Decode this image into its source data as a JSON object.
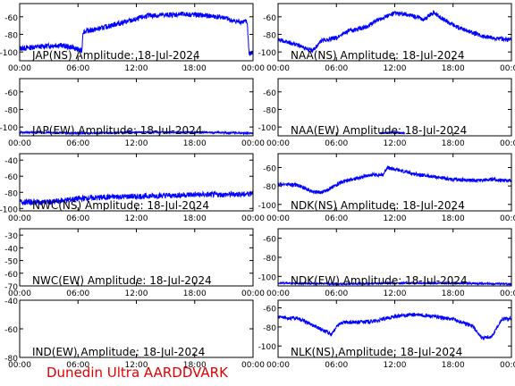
{
  "footer": {
    "text": "Dunedin Ultra AARDDVARK",
    "color": "#e00000"
  },
  "colors": {
    "trace": "#0000ff",
    "axis": "#000000",
    "background": "#ffffff"
  },
  "x_tick_labels": [
    "00:00",
    "06:00",
    "12:00",
    "18:00",
    "00:00"
  ],
  "chart_data": [
    {
      "type": "line",
      "title": "JAP(NS) Amplitude: 18-Jul-2024",
      "xlim": [
        0,
        24
      ],
      "ylim": [
        -110,
        -45
      ],
      "yticks": [
        -100,
        -80,
        -60
      ],
      "ytick_labels": [
        "-100",
        "-80",
        "-60"
      ],
      "points": [
        [
          0,
          -96
        ],
        [
          2,
          -94
        ],
        [
          4,
          -92
        ],
        [
          5.5,
          -95
        ],
        [
          6.4,
          -99
        ],
        [
          6.5,
          -77
        ],
        [
          8,
          -74
        ],
        [
          10,
          -68
        ],
        [
          12,
          -63
        ],
        [
          13,
          -59
        ],
        [
          15,
          -58
        ],
        [
          17,
          -57
        ],
        [
          19.5,
          -59
        ],
        [
          21,
          -61
        ],
        [
          22,
          -65
        ],
        [
          23.4,
          -66
        ],
        [
          23.6,
          -103
        ],
        [
          24,
          -100
        ]
      ],
      "band": 6
    },
    {
      "type": "line",
      "title": "NAA(NS) Amplitude: 18-Jul-2024",
      "xlim": [
        0,
        24
      ],
      "ylim": [
        -110,
        -45
      ],
      "yticks": [
        -100,
        -80,
        -60
      ],
      "ytick_labels": [
        "-100",
        "-80",
        "-60"
      ],
      "points": [
        [
          0,
          -86
        ],
        [
          2,
          -92
        ],
        [
          3.5,
          -99
        ],
        [
          4.5,
          -87
        ],
        [
          6,
          -84
        ],
        [
          7,
          -77
        ],
        [
          9,
          -72
        ],
        [
          10.5,
          -62
        ],
        [
          12,
          -56
        ],
        [
          13.5,
          -58
        ],
        [
          15,
          -63
        ],
        [
          16,
          -55
        ],
        [
          17,
          -63
        ],
        [
          18.5,
          -72
        ],
        [
          20,
          -78
        ],
        [
          21,
          -82
        ],
        [
          22.5,
          -85
        ],
        [
          24,
          -86
        ]
      ],
      "band": 5
    },
    {
      "type": "line",
      "title": "JAP(EW) Amplitude: 18-Jul-2024",
      "xlim": [
        0,
        24
      ],
      "ylim": [
        -110,
        -45
      ],
      "yticks": [
        -100,
        -80,
        -60
      ],
      "ytick_labels": [
        "-100",
        "-80",
        "-60"
      ],
      "points": [
        [
          0,
          -106
        ],
        [
          7,
          -107
        ],
        [
          12,
          -106
        ],
        [
          18,
          -106
        ],
        [
          24,
          -107
        ]
      ],
      "band": 2
    },
    {
      "type": "line",
      "title": "NAA(EW) Amplitude: 18-Jul-2024",
      "xlim": [
        0,
        24
      ],
      "ylim": [
        -110,
        -45
      ],
      "yticks": [
        -100,
        -80,
        -60
      ],
      "ytick_labels": [
        "-100",
        "-80",
        "-60"
      ],
      "points": [
        [
          10.5,
          -107
        ],
        [
          12,
          -106
        ],
        [
          13,
          -107
        ]
      ],
      "band": 2
    },
    {
      "type": "line",
      "title": "NWC(NS) Amplitude: 18-Jul-2024",
      "xlim": [
        0,
        24
      ],
      "ylim": [
        -103,
        -32
      ],
      "yticks": [
        -100,
        -80,
        -60,
        -40
      ],
      "ytick_labels": [
        "-100",
        "-80",
        "-60",
        "-40"
      ],
      "points": [
        [
          0,
          -92
        ],
        [
          3,
          -92
        ],
        [
          6,
          -88
        ],
        [
          9,
          -86
        ],
        [
          12,
          -85
        ],
        [
          15,
          -84
        ],
        [
          18,
          -83
        ],
        [
          21,
          -83
        ],
        [
          23.5,
          -82
        ],
        [
          24,
          -80
        ]
      ],
      "band": 7
    },
    {
      "type": "line",
      "title": "NDK(NS) Amplitude: 18-Jul-2024",
      "xlim": [
        0,
        24
      ],
      "ylim": [
        -107,
        -45
      ],
      "yticks": [
        -100,
        -80,
        -60
      ],
      "ytick_labels": [
        "-100",
        "-80",
        "-60"
      ],
      "points": [
        [
          0,
          -78
        ],
        [
          2,
          -79
        ],
        [
          3.5,
          -86
        ],
        [
          4.5,
          -87
        ],
        [
          5.5,
          -82
        ],
        [
          6.5,
          -76
        ],
        [
          8,
          -72
        ],
        [
          9.5,
          -68
        ],
        [
          10.8,
          -68
        ],
        [
          11.2,
          -60
        ],
        [
          12,
          -62
        ],
        [
          14,
          -67
        ],
        [
          16,
          -70
        ],
        [
          18,
          -73
        ],
        [
          20,
          -74
        ],
        [
          22,
          -73
        ],
        [
          24,
          -74
        ]
      ],
      "band": 4
    },
    {
      "type": "line",
      "title": "NWC(EW) Amplitude: 18-Jul-2024",
      "xlim": [
        0,
        24
      ],
      "ylim": [
        -70,
        -25
      ],
      "yticks": [
        -70,
        -60,
        -50,
        -40,
        -30
      ],
      "ytick_labels": [
        "-70",
        "-60",
        "-50",
        "-40",
        "-30"
      ],
      "points": [],
      "band": 0
    },
    {
      "type": "line",
      "title": "NDK(EW) Amplitude: 18-Jul-2024",
      "xlim": [
        0,
        24
      ],
      "ylim": [
        -110,
        -50
      ],
      "yticks": [
        -100,
        -80,
        -60
      ],
      "ytick_labels": [
        "-100",
        "-80",
        "-60"
      ],
      "points": [
        [
          0,
          -107
        ],
        [
          6,
          -108
        ],
        [
          12,
          -107
        ],
        [
          18,
          -107
        ],
        [
          24,
          -108
        ]
      ],
      "band": 2
    },
    {
      "type": "line",
      "title": "IND(EW) Amplitude: 18-Jul-2024",
      "xlim": [
        0,
        24
      ],
      "ylim": [
        -80,
        -40
      ],
      "yticks": [
        -80,
        -60,
        -40
      ],
      "ytick_labels": [
        "-80",
        "-60",
        "-40"
      ],
      "points": [],
      "band": 0
    },
    {
      "type": "line",
      "title": "NLK(NS) Amplitude: 18-Jul-2024",
      "xlim": [
        0,
        24
      ],
      "ylim": [
        -112,
        -52
      ],
      "yticks": [
        -100,
        -80,
        -60
      ],
      "ytick_labels": [
        "-100",
        "-80",
        "-60"
      ],
      "points": [
        [
          0,
          -70
        ],
        [
          2,
          -71
        ],
        [
          4,
          -80
        ],
        [
          5.5,
          -88
        ],
        [
          6.3,
          -76
        ],
        [
          8,
          -75
        ],
        [
          10,
          -74
        ],
        [
          12,
          -69
        ],
        [
          14,
          -67
        ],
        [
          16,
          -69
        ],
        [
          18,
          -72
        ],
        [
          20,
          -79
        ],
        [
          21,
          -92
        ],
        [
          22,
          -90
        ],
        [
          23,
          -72
        ],
        [
          24,
          -71
        ]
      ],
      "band": 4
    }
  ]
}
